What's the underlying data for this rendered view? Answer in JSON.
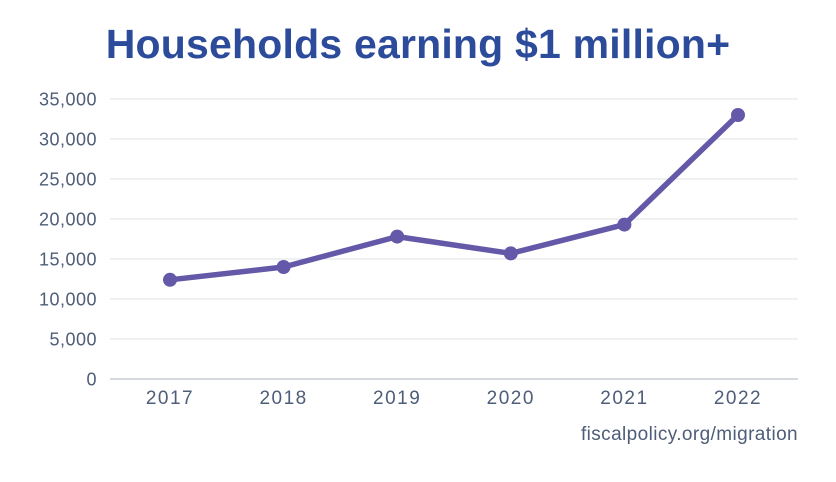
{
  "chart_data": {
    "type": "line",
    "title": "Households earning $1 million+",
    "categories": [
      "2017",
      "2018",
      "2019",
      "2020",
      "2021",
      "2022"
    ],
    "values": [
      12400,
      14000,
      17800,
      15700,
      19300,
      33000
    ],
    "series_name": "Households earning $1 million+",
    "xlabel": "",
    "ylabel": "",
    "ylim": [
      0,
      35000
    ],
    "ytick_step": 5000,
    "ytick_labels": [
      "0",
      "5,000",
      "10,000",
      "15,000",
      "20,000",
      "25,000",
      "30,000",
      "35,000"
    ],
    "grid": true,
    "legend": false,
    "marker": "circle"
  },
  "source": {
    "label": "fiscalpolicy.org/migration"
  },
  "colors": {
    "title": "#2D4B9B",
    "axis_label": "#4E5D78",
    "line": "#6459A8",
    "marker": "#6459A8",
    "gridline": "#DFE1E5",
    "zero_line": "#C9CDD4",
    "background": "#FFFFFF"
  }
}
